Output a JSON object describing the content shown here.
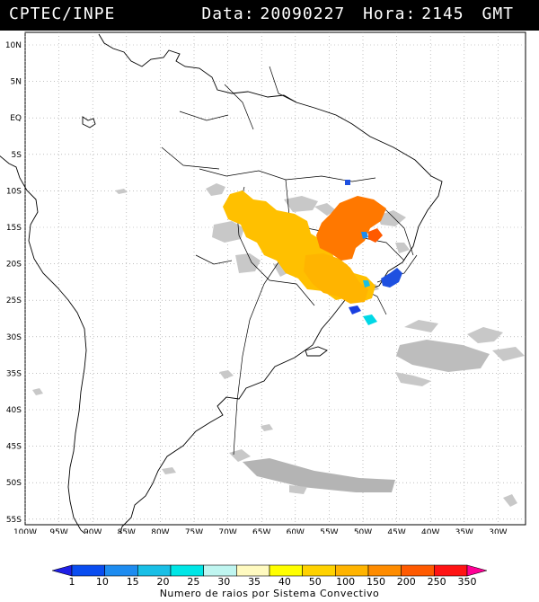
{
  "header": {
    "org": "CPTEC/INPE",
    "date_label": "Data:",
    "date_value": "20090227",
    "time_label": "Hora:",
    "time_value": "2145",
    "tz": "GMT"
  },
  "latitude_labels": [
    "10N",
    "5N",
    "EQ",
    "5S",
    "10S",
    "15S",
    "20S",
    "25S",
    "30S",
    "35S",
    "40S",
    "45S",
    "50S",
    "55S"
  ],
  "longitude_labels": [
    "100W",
    "95W",
    "90W",
    "85W",
    "80W",
    "75W",
    "70W",
    "65W",
    "60W",
    "55W",
    "50W",
    "45W",
    "40W",
    "35W",
    "30W"
  ],
  "legend": {
    "ticks": [
      "1",
      "10",
      "15",
      "20",
      "25",
      "30",
      "35",
      "40",
      "50",
      "100",
      "150",
      "200",
      "250",
      "350"
    ],
    "colors": [
      "#1f1fe6",
      "#0a4df0",
      "#1e8cf0",
      "#19bfe6",
      "#00e6e6",
      "#bff5f0",
      "#fffac0",
      "#ffff00",
      "#ffd200",
      "#ffb400",
      "#ff8c00",
      "#ff5a00",
      "#ff1414",
      "#ff0096"
    ],
    "caption": "Numero de raios por Sistema Convectivo"
  }
}
